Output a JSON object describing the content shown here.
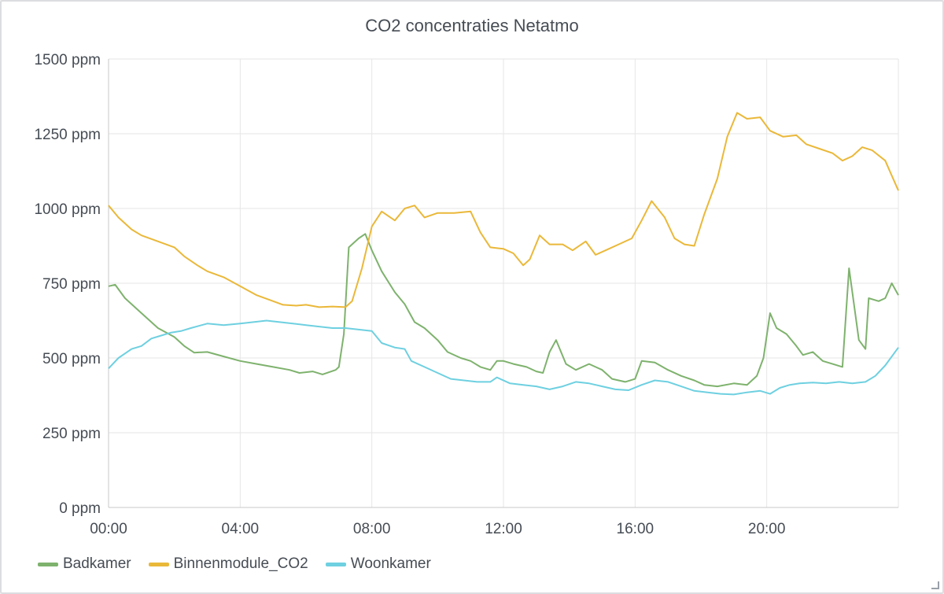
{
  "panel": {
    "title": "CO2 concentraties Netatmo"
  },
  "chart_data": {
    "type": "line",
    "title": "CO2 concentraties Netatmo",
    "xlabel": "",
    "ylabel": "",
    "x_range_hours": [
      0,
      24
    ],
    "ylim": [
      0,
      1500
    ],
    "x_ticks": [
      {
        "hour": 0,
        "label": "00:00"
      },
      {
        "hour": 4,
        "label": "04:00"
      },
      {
        "hour": 8,
        "label": "08:00"
      },
      {
        "hour": 12,
        "label": "12:00"
      },
      {
        "hour": 16,
        "label": "16:00"
      },
      {
        "hour": 20,
        "label": "20:00"
      }
    ],
    "y_ticks": [
      {
        "value": 0,
        "label": "0 ppm"
      },
      {
        "value": 250,
        "label": "250 ppm"
      },
      {
        "value": 500,
        "label": "500 ppm"
      },
      {
        "value": 750,
        "label": "750 ppm"
      },
      {
        "value": 1000,
        "label": "1000 ppm"
      },
      {
        "value": 1250,
        "label": "1250 ppm"
      },
      {
        "value": 1500,
        "label": "1500 ppm"
      }
    ],
    "grid": true,
    "legend_position": "bottom-left",
    "series": [
      {
        "name": "Badkamer",
        "color": "#7eb26d",
        "points": [
          [
            0,
            740
          ],
          [
            0.2,
            745
          ],
          [
            0.5,
            700
          ],
          [
            1,
            650
          ],
          [
            1.5,
            600
          ],
          [
            2,
            570
          ],
          [
            2.3,
            540
          ],
          [
            2.6,
            518
          ],
          [
            3,
            520
          ],
          [
            3.5,
            505
          ],
          [
            4,
            490
          ],
          [
            4.5,
            480
          ],
          [
            5,
            470
          ],
          [
            5.5,
            460
          ],
          [
            5.8,
            450
          ],
          [
            6.2,
            455
          ],
          [
            6.5,
            445
          ],
          [
            6.9,
            460
          ],
          [
            7.0,
            470
          ],
          [
            7.15,
            580
          ],
          [
            7.3,
            870
          ],
          [
            7.6,
            900
          ],
          [
            7.8,
            915
          ],
          [
            8.0,
            860
          ],
          [
            8.3,
            790
          ],
          [
            8.7,
            720
          ],
          [
            9.0,
            680
          ],
          [
            9.3,
            620
          ],
          [
            9.6,
            600
          ],
          [
            10.0,
            560
          ],
          [
            10.3,
            520
          ],
          [
            10.7,
            500
          ],
          [
            11.0,
            490
          ],
          [
            11.3,
            470
          ],
          [
            11.6,
            460
          ],
          [
            11.8,
            490
          ],
          [
            12.0,
            490
          ],
          [
            12.3,
            480
          ],
          [
            12.7,
            470
          ],
          [
            13.0,
            455
          ],
          [
            13.2,
            450
          ],
          [
            13.4,
            520
          ],
          [
            13.6,
            560
          ],
          [
            13.9,
            480
          ],
          [
            14.2,
            460
          ],
          [
            14.6,
            480
          ],
          [
            15.0,
            460
          ],
          [
            15.3,
            430
          ],
          [
            15.7,
            420
          ],
          [
            16.0,
            430
          ],
          [
            16.2,
            490
          ],
          [
            16.6,
            485
          ],
          [
            17.0,
            460
          ],
          [
            17.4,
            440
          ],
          [
            17.8,
            425
          ],
          [
            18.1,
            410
          ],
          [
            18.5,
            405
          ],
          [
            19.0,
            415
          ],
          [
            19.4,
            410
          ],
          [
            19.7,
            440
          ],
          [
            19.9,
            500
          ],
          [
            20.1,
            650
          ],
          [
            20.3,
            600
          ],
          [
            20.6,
            580
          ],
          [
            20.9,
            540
          ],
          [
            21.1,
            510
          ],
          [
            21.4,
            520
          ],
          [
            21.7,
            490
          ],
          [
            22.0,
            480
          ],
          [
            22.3,
            470
          ],
          [
            22.5,
            800
          ],
          [
            22.8,
            560
          ],
          [
            23.0,
            530
          ],
          [
            23.1,
            700
          ],
          [
            23.4,
            690
          ],
          [
            23.6,
            700
          ],
          [
            23.8,
            750
          ],
          [
            24.0,
            710
          ]
        ]
      },
      {
        "name": "Binnenmodule_CO2",
        "color": "#eab839",
        "points": [
          [
            0,
            1010
          ],
          [
            0.3,
            970
          ],
          [
            0.7,
            930
          ],
          [
            1.0,
            910
          ],
          [
            1.5,
            890
          ],
          [
            2.0,
            870
          ],
          [
            2.3,
            840
          ],
          [
            2.7,
            810
          ],
          [
            3.0,
            790
          ],
          [
            3.5,
            770
          ],
          [
            4.0,
            740
          ],
          [
            4.5,
            710
          ],
          [
            5.0,
            690
          ],
          [
            5.3,
            678
          ],
          [
            5.7,
            675
          ],
          [
            6.0,
            678
          ],
          [
            6.4,
            670
          ],
          [
            6.8,
            672
          ],
          [
            7.2,
            670
          ],
          [
            7.4,
            690
          ],
          [
            7.7,
            800
          ],
          [
            8.0,
            940
          ],
          [
            8.3,
            990
          ],
          [
            8.7,
            960
          ],
          [
            9.0,
            1000
          ],
          [
            9.3,
            1010
          ],
          [
            9.6,
            970
          ],
          [
            10.0,
            985
          ],
          [
            10.5,
            985
          ],
          [
            11.0,
            990
          ],
          [
            11.3,
            920
          ],
          [
            11.6,
            870
          ],
          [
            12.0,
            865
          ],
          [
            12.3,
            850
          ],
          [
            12.6,
            810
          ],
          [
            12.8,
            830
          ],
          [
            13.1,
            910
          ],
          [
            13.4,
            880
          ],
          [
            13.8,
            880
          ],
          [
            14.1,
            860
          ],
          [
            14.5,
            890
          ],
          [
            14.8,
            845
          ],
          [
            15.2,
            865
          ],
          [
            15.5,
            880
          ],
          [
            15.9,
            900
          ],
          [
            16.2,
            960
          ],
          [
            16.5,
            1025
          ],
          [
            16.9,
            970
          ],
          [
            17.2,
            900
          ],
          [
            17.5,
            880
          ],
          [
            17.8,
            875
          ],
          [
            18.1,
            980
          ],
          [
            18.5,
            1100
          ],
          [
            18.8,
            1240
          ],
          [
            19.1,
            1320
          ],
          [
            19.4,
            1300
          ],
          [
            19.8,
            1305
          ],
          [
            20.1,
            1260
          ],
          [
            20.5,
            1240
          ],
          [
            20.9,
            1245
          ],
          [
            21.2,
            1215
          ],
          [
            21.6,
            1200
          ],
          [
            22.0,
            1185
          ],
          [
            22.3,
            1160
          ],
          [
            22.6,
            1175
          ],
          [
            22.9,
            1205
          ],
          [
            23.2,
            1195
          ],
          [
            23.6,
            1160
          ],
          [
            23.8,
            1110
          ],
          [
            24.0,
            1060
          ]
        ]
      },
      {
        "name": "Woonkamer",
        "color": "#6ed0e0",
        "points": [
          [
            0,
            465
          ],
          [
            0.3,
            500
          ],
          [
            0.7,
            530
          ],
          [
            1.0,
            540
          ],
          [
            1.3,
            565
          ],
          [
            1.6,
            575
          ],
          [
            1.9,
            585
          ],
          [
            2.2,
            590
          ],
          [
            2.5,
            600
          ],
          [
            3.0,
            615
          ],
          [
            3.5,
            610
          ],
          [
            4.0,
            615
          ],
          [
            4.4,
            620
          ],
          [
            4.8,
            625
          ],
          [
            5.2,
            620
          ],
          [
            5.6,
            615
          ],
          [
            6.0,
            610
          ],
          [
            6.4,
            605
          ],
          [
            6.8,
            600
          ],
          [
            7.2,
            600
          ],
          [
            7.6,
            595
          ],
          [
            8.0,
            590
          ],
          [
            8.3,
            550
          ],
          [
            8.7,
            535
          ],
          [
            9.0,
            530
          ],
          [
            9.2,
            490
          ],
          [
            9.6,
            470
          ],
          [
            10.0,
            450
          ],
          [
            10.4,
            430
          ],
          [
            10.8,
            425
          ],
          [
            11.2,
            420
          ],
          [
            11.6,
            420
          ],
          [
            11.8,
            435
          ],
          [
            12.2,
            415
          ],
          [
            12.6,
            410
          ],
          [
            13.0,
            405
          ],
          [
            13.4,
            395
          ],
          [
            13.8,
            405
          ],
          [
            14.2,
            420
          ],
          [
            14.6,
            415
          ],
          [
            15.0,
            405
          ],
          [
            15.4,
            395
          ],
          [
            15.8,
            392
          ],
          [
            16.2,
            410
          ],
          [
            16.6,
            425
          ],
          [
            17.0,
            420
          ],
          [
            17.4,
            405
          ],
          [
            17.8,
            390
          ],
          [
            18.2,
            385
          ],
          [
            18.6,
            380
          ],
          [
            19.0,
            378
          ],
          [
            19.4,
            385
          ],
          [
            19.8,
            390
          ],
          [
            20.1,
            380
          ],
          [
            20.4,
            400
          ],
          [
            20.7,
            410
          ],
          [
            21.0,
            415
          ],
          [
            21.4,
            418
          ],
          [
            21.8,
            415
          ],
          [
            22.2,
            420
          ],
          [
            22.6,
            415
          ],
          [
            23.0,
            420
          ],
          [
            23.3,
            440
          ],
          [
            23.6,
            475
          ],
          [
            24.0,
            535
          ]
        ]
      }
    ]
  }
}
